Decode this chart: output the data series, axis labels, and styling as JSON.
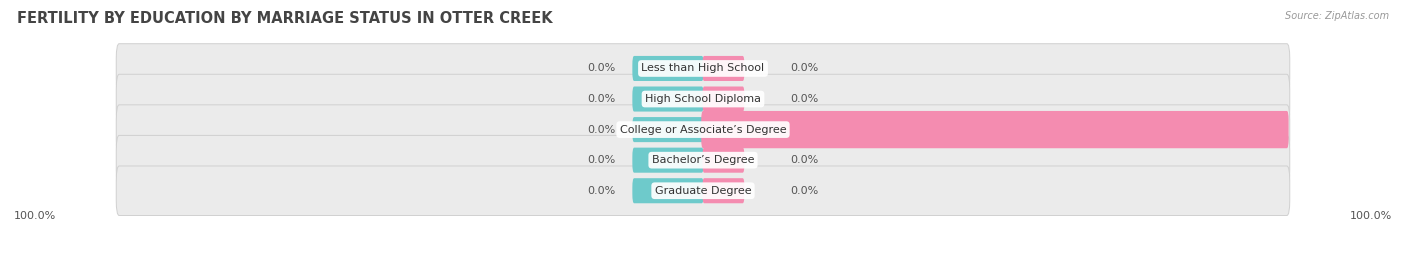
{
  "title": "FERTILITY BY EDUCATION BY MARRIAGE STATUS IN OTTER CREEK",
  "source": "Source: ZipAtlas.com",
  "categories": [
    "Less than High School",
    "High School Diploma",
    "College or Associate’s Degree",
    "Bachelor’s Degree",
    "Graduate Degree"
  ],
  "married_values": [
    0.0,
    0.0,
    0.0,
    0.0,
    0.0
  ],
  "unmarried_values": [
    0.0,
    0.0,
    100.0,
    0.0,
    0.0
  ],
  "married_color": "#6ECACB",
  "unmarried_color": "#F48CB0",
  "bar_bg_color": "#EBEBEB",
  "bar_border_color": "#D0D0D0",
  "title_fontsize": 10.5,
  "label_fontsize": 8,
  "category_fontsize": 8,
  "max_value": 100.0,
  "bar_height": 0.62,
  "fig_bg_color": "#FFFFFF",
  "bottom_left_label": "100.0%",
  "bottom_right_label": "100.0%"
}
